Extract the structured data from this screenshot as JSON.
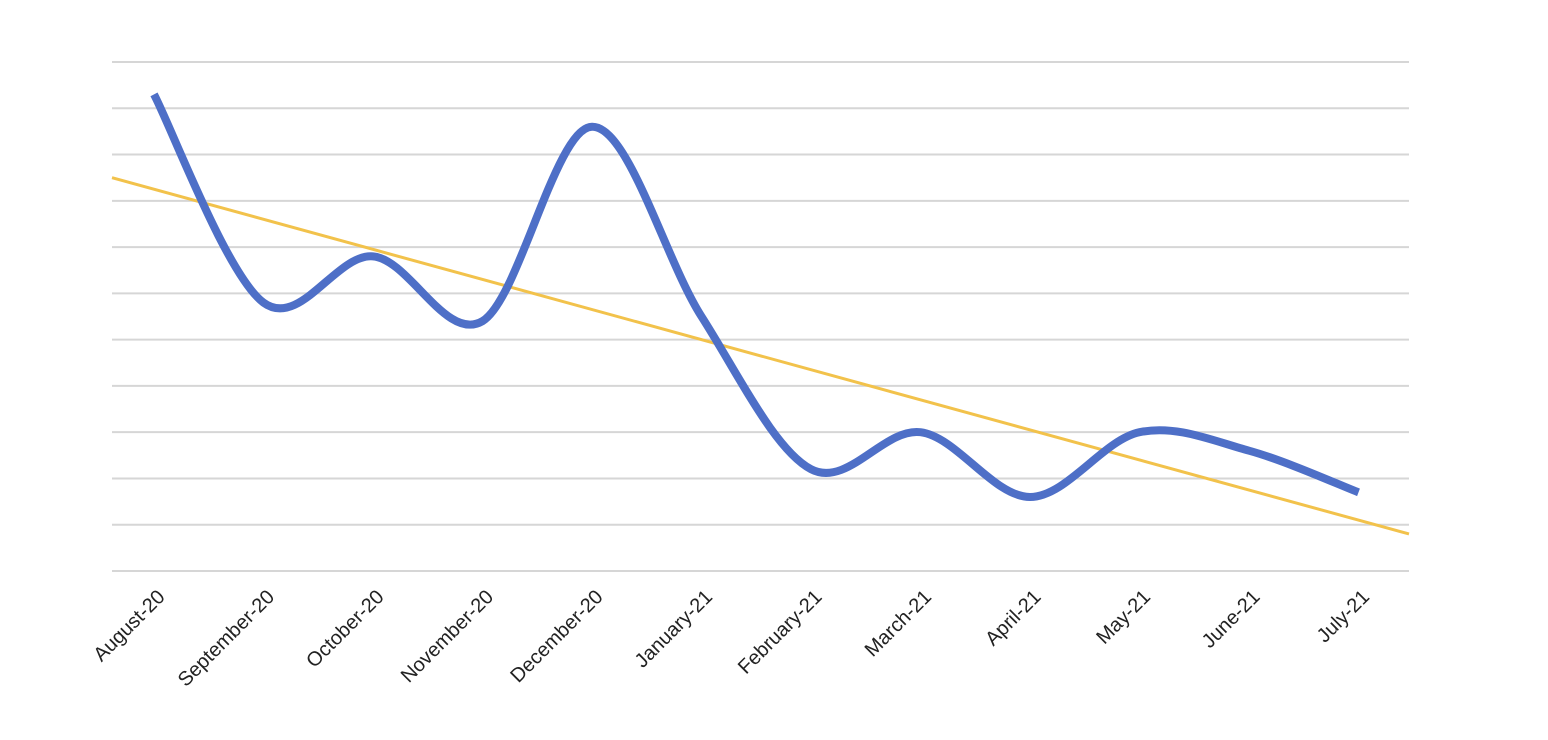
{
  "chart_data": {
    "type": "line",
    "title": "",
    "xlabel": "",
    "ylabel": "",
    "categories": [
      "August-20",
      "September-20",
      "October-20",
      "November-20",
      "December-20",
      "January-21",
      "February-21",
      "March-21",
      "April-21",
      "May-21",
      "June-21",
      "July-21"
    ],
    "series": [
      {
        "values": [
          10.3,
          5.8,
          6.8,
          5.4,
          9.6,
          5.5,
          2.2,
          3.0,
          1.6,
          3.0,
          2.6,
          1.7
        ],
        "color": "#4e6fc7",
        "smooth": true
      }
    ],
    "trendline": {
      "type": "linear",
      "start": 8.5,
      "end": 0.8,
      "color": "#f2c24b"
    },
    "ylim": [
      0,
      11
    ],
    "y_gridlines": 11,
    "grid": true,
    "y_tick_labels_visible": false,
    "legend": "none"
  }
}
